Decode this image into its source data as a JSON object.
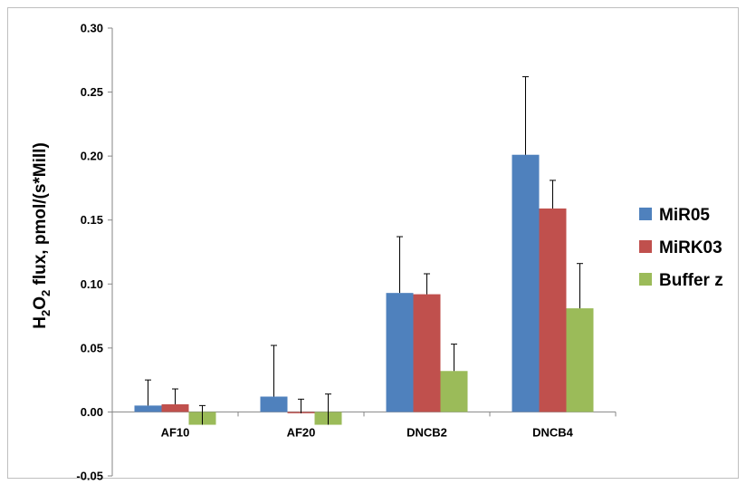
{
  "chart_data": {
    "type": "bar",
    "title": "",
    "xlabel": "",
    "ylabel": {
      "main": "H",
      "sub1": "2",
      "mid": "O",
      "sub2": "2",
      "rest": " flux, pmol/(s*Mill)"
    },
    "ylim": [
      -0.05,
      0.3
    ],
    "yticks": [
      "-0.05",
      "0.00",
      "0.05",
      "0.10",
      "0.15",
      "0.20",
      "0.25",
      "0.30"
    ],
    "ytick_values": [
      -0.05,
      0.0,
      0.05,
      0.1,
      0.15,
      0.2,
      0.25,
      0.3
    ],
    "categories": [
      "AF10",
      "AF20",
      "DNCB2",
      "DNCB4"
    ],
    "series": [
      {
        "name": "MiR05",
        "color": "#4F81BD",
        "values": [
          0.005,
          0.012,
          0.093,
          0.201
        ],
        "errors": [
          0.02,
          0.04,
          0.044,
          0.061
        ]
      },
      {
        "name": "MiRK03",
        "color": "#C0504D",
        "values": [
          0.006,
          -0.001,
          0.092,
          0.159
        ],
        "errors": [
          0.012,
          0.011,
          0.016,
          0.022
        ]
      },
      {
        "name": "Buffer z",
        "color": "#9BBB59",
        "values": [
          -0.01,
          -0.01,
          0.032,
          0.081
        ],
        "errors": [
          0.015,
          0.024,
          0.021,
          0.035
        ]
      }
    ],
    "legend_position": "right",
    "grid": false
  }
}
